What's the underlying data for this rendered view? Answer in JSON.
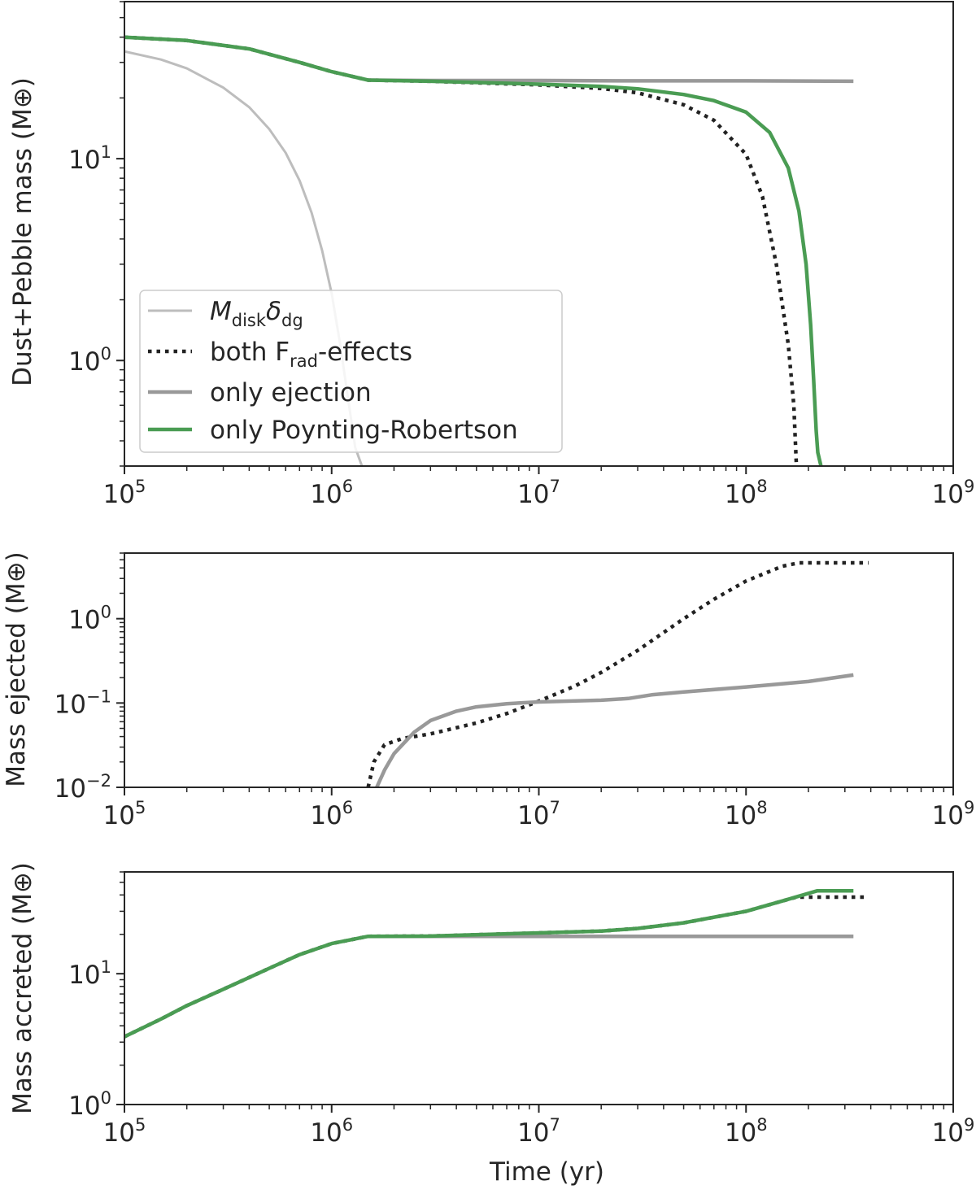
{
  "colors": {
    "green": "#4a9c53",
    "gray": "#999999",
    "lightgray": "#bdbdbd",
    "black": "#222222"
  },
  "chart_data": [
    {
      "type": "line",
      "xscale": "log",
      "yscale": "log",
      "xlim": [
        100000,
        1000000000
      ],
      "ylim": [
        0.3,
        60
      ],
      "ylabel": "Dust+Pebble mass (M⊕)",
      "xlabel": "",
      "xticks": [
        {
          "base": "10",
          "exp": "5",
          "value": 100000
        },
        {
          "base": "10",
          "exp": "6",
          "value": 1000000
        },
        {
          "base": "10",
          "exp": "7",
          "value": 10000000
        },
        {
          "base": "10",
          "exp": "8",
          "value": 100000000
        },
        {
          "base": "10",
          "exp": "9",
          "value": 1000000000
        }
      ],
      "yticks": [
        {
          "base": "10",
          "exp": "0",
          "value": 1
        },
        {
          "base": "10",
          "exp": "1",
          "value": 10
        }
      ],
      "legend": {
        "placement": "lower-left",
        "entries": [
          {
            "series": "mdisk",
            "pre": "M",
            "sub1": "disk",
            "mid": "δ",
            "sub2": "dg",
            "post": "",
            "style": "thin-lightgray"
          },
          {
            "series": "both",
            "pre": "both F",
            "sub1": "rad",
            "mid": "-effects",
            "sub2": "",
            "post": "",
            "style": "dotted-black"
          },
          {
            "series": "ejection",
            "pre": "only ejection",
            "sub1": "",
            "mid": "",
            "sub2": "",
            "post": "",
            "style": "solid-gray"
          },
          {
            "series": "pr",
            "pre": "only Poynting-Robertson",
            "sub1": "",
            "mid": "",
            "sub2": "",
            "post": "",
            "style": "solid-green"
          }
        ]
      },
      "series": [
        {
          "name": "M_disk δ_dg",
          "key": "mdisk",
          "style": "thin-lightgray",
          "x": [
            100000,
            150000,
            200000,
            300000,
            400000,
            500000,
            600000,
            700000,
            800000,
            900000,
            1000000,
            1100000,
            1200000,
            1300000,
            1400000
          ],
          "y": [
            34,
            31,
            28,
            22.5,
            18,
            14,
            10.7,
            7.8,
            5.4,
            3.5,
            2.15,
            1.2,
            0.65,
            0.37,
            0.3
          ]
        },
        {
          "name": "both F_rad-effects",
          "key": "both",
          "style": "dotted-black",
          "x": [
            100000,
            200000,
            400000,
            700000,
            1000000,
            1500000,
            3000000,
            10000000,
            20000000,
            30000000,
            50000000,
            70000000,
            100000000,
            120000000,
            140000000,
            160000000,
            170000000,
            175000000
          ],
          "y": [
            40,
            38.5,
            35,
            30,
            27,
            24.5,
            24.2,
            23.2,
            22.3,
            21.2,
            18.5,
            15.5,
            10.5,
            6.5,
            3,
            1.2,
            0.6,
            0.3
          ]
        },
        {
          "name": "only ejection",
          "key": "ejection",
          "style": "solid-gray",
          "x": [
            1500000,
            3000000,
            10000000,
            30000000,
            100000000,
            330000000
          ],
          "y": [
            24.5,
            24.4,
            24.4,
            24.3,
            24.3,
            24.2
          ]
        },
        {
          "name": "only Poynting-Robertson",
          "key": "pr",
          "style": "solid-green",
          "x": [
            100000,
            200000,
            400000,
            700000,
            1000000,
            1500000,
            3000000,
            10000000,
            20000000,
            30000000,
            50000000,
            70000000,
            100000000,
            130000000,
            160000000,
            180000000,
            195000000,
            205000000,
            212000000,
            218000000,
            222000000,
            230000000
          ],
          "y": [
            40,
            38.5,
            35,
            30,
            27,
            24.5,
            24.2,
            23.4,
            22.8,
            22.2,
            20.8,
            19.4,
            17,
            13.5,
            9,
            5.5,
            3,
            1.5,
            0.8,
            0.45,
            0.35,
            0.3
          ]
        }
      ]
    },
    {
      "type": "line",
      "xscale": "log",
      "yscale": "log",
      "xlim": [
        100000,
        1000000000
      ],
      "ylim": [
        0.01,
        6
      ],
      "ylabel": "Mass ejected (M⊕)",
      "xlabel": "",
      "xticks": [
        {
          "base": "10",
          "exp": "5",
          "value": 100000
        },
        {
          "base": "10",
          "exp": "6",
          "value": 1000000
        },
        {
          "base": "10",
          "exp": "7",
          "value": 10000000
        },
        {
          "base": "10",
          "exp": "8",
          "value": 100000000
        },
        {
          "base": "10",
          "exp": "9",
          "value": 1000000000
        }
      ],
      "yticks": [
        {
          "base": "10",
          "exp": "−2",
          "value": 0.01
        },
        {
          "base": "10",
          "exp": "−1",
          "value": 0.1
        },
        {
          "base": "10",
          "exp": "0",
          "value": 1
        }
      ],
      "series": [
        {
          "name": "both F_rad-effects",
          "key": "both",
          "style": "dotted-black",
          "x": [
            1500000,
            1600000,
            1800000,
            2200000,
            3000000,
            5000000,
            7000000,
            10000000,
            15000000,
            20000000,
            30000000,
            50000000,
            70000000,
            100000000,
            150000000,
            180000000,
            250000000,
            390000000
          ],
          "y": [
            0.01,
            0.02,
            0.032,
            0.038,
            0.043,
            0.058,
            0.075,
            0.105,
            0.16,
            0.23,
            0.42,
            1.0,
            1.7,
            2.8,
            4.2,
            4.6,
            4.6,
            4.6
          ]
        },
        {
          "name": "only ejection",
          "key": "ejection",
          "style": "solid-gray",
          "x": [
            1650000,
            1800000,
            2000000,
            2500000,
            3000000,
            4000000,
            5000000,
            7000000,
            10000000,
            20000000,
            27000000,
            35000000,
            50000000,
            100000000,
            200000000,
            330000000
          ],
          "y": [
            0.01,
            0.016,
            0.025,
            0.045,
            0.062,
            0.08,
            0.09,
            0.098,
            0.103,
            0.108,
            0.113,
            0.125,
            0.135,
            0.155,
            0.18,
            0.215
          ]
        }
      ]
    },
    {
      "type": "line",
      "xscale": "log",
      "yscale": "log",
      "xlim": [
        100000,
        1000000000
      ],
      "ylim": [
        1,
        60
      ],
      "ylabel": "Mass accreted (M⊕)",
      "xlabel": "Time (yr)",
      "xticks": [
        {
          "base": "10",
          "exp": "5",
          "value": 100000
        },
        {
          "base": "10",
          "exp": "6",
          "value": 1000000
        },
        {
          "base": "10",
          "exp": "7",
          "value": 10000000
        },
        {
          "base": "10",
          "exp": "8",
          "value": 100000000
        },
        {
          "base": "10",
          "exp": "9",
          "value": 1000000000
        }
      ],
      "yticks": [
        {
          "base": "10",
          "exp": "0",
          "value": 1
        },
        {
          "base": "10",
          "exp": "1",
          "value": 10
        }
      ],
      "series": [
        {
          "name": "both F_rad-effects",
          "key": "both",
          "style": "dotted-black",
          "x": [
            100000,
            150000,
            200000,
            300000,
            500000,
            700000,
            1000000,
            1500000,
            3000000,
            10000000,
            20000000,
            30000000,
            50000000,
            100000000,
            150000000,
            175000000,
            390000000
          ],
          "y": [
            3.3,
            4.5,
            5.7,
            7.6,
            11,
            14,
            17,
            19.3,
            19.4,
            20.5,
            21.2,
            22.2,
            24.5,
            30,
            36,
            38.5,
            38.5
          ]
        },
        {
          "name": "only ejection",
          "key": "ejection",
          "style": "solid-gray",
          "x": [
            1500000,
            10000000,
            100000000,
            330000000
          ],
          "y": [
            19.3,
            19.3,
            19.3,
            19.3
          ]
        },
        {
          "name": "only Poynting-Robertson",
          "key": "pr",
          "style": "solid-green",
          "x": [
            100000,
            150000,
            200000,
            300000,
            500000,
            700000,
            1000000,
            1500000,
            3000000,
            10000000,
            20000000,
            30000000,
            50000000,
            100000000,
            150000000,
            220000000,
            330000000
          ],
          "y": [
            3.3,
            4.5,
            5.7,
            7.6,
            11,
            14,
            17,
            19.3,
            19.4,
            20.5,
            21.2,
            22.2,
            24.5,
            30,
            36,
            43,
            43
          ]
        }
      ]
    }
  ]
}
